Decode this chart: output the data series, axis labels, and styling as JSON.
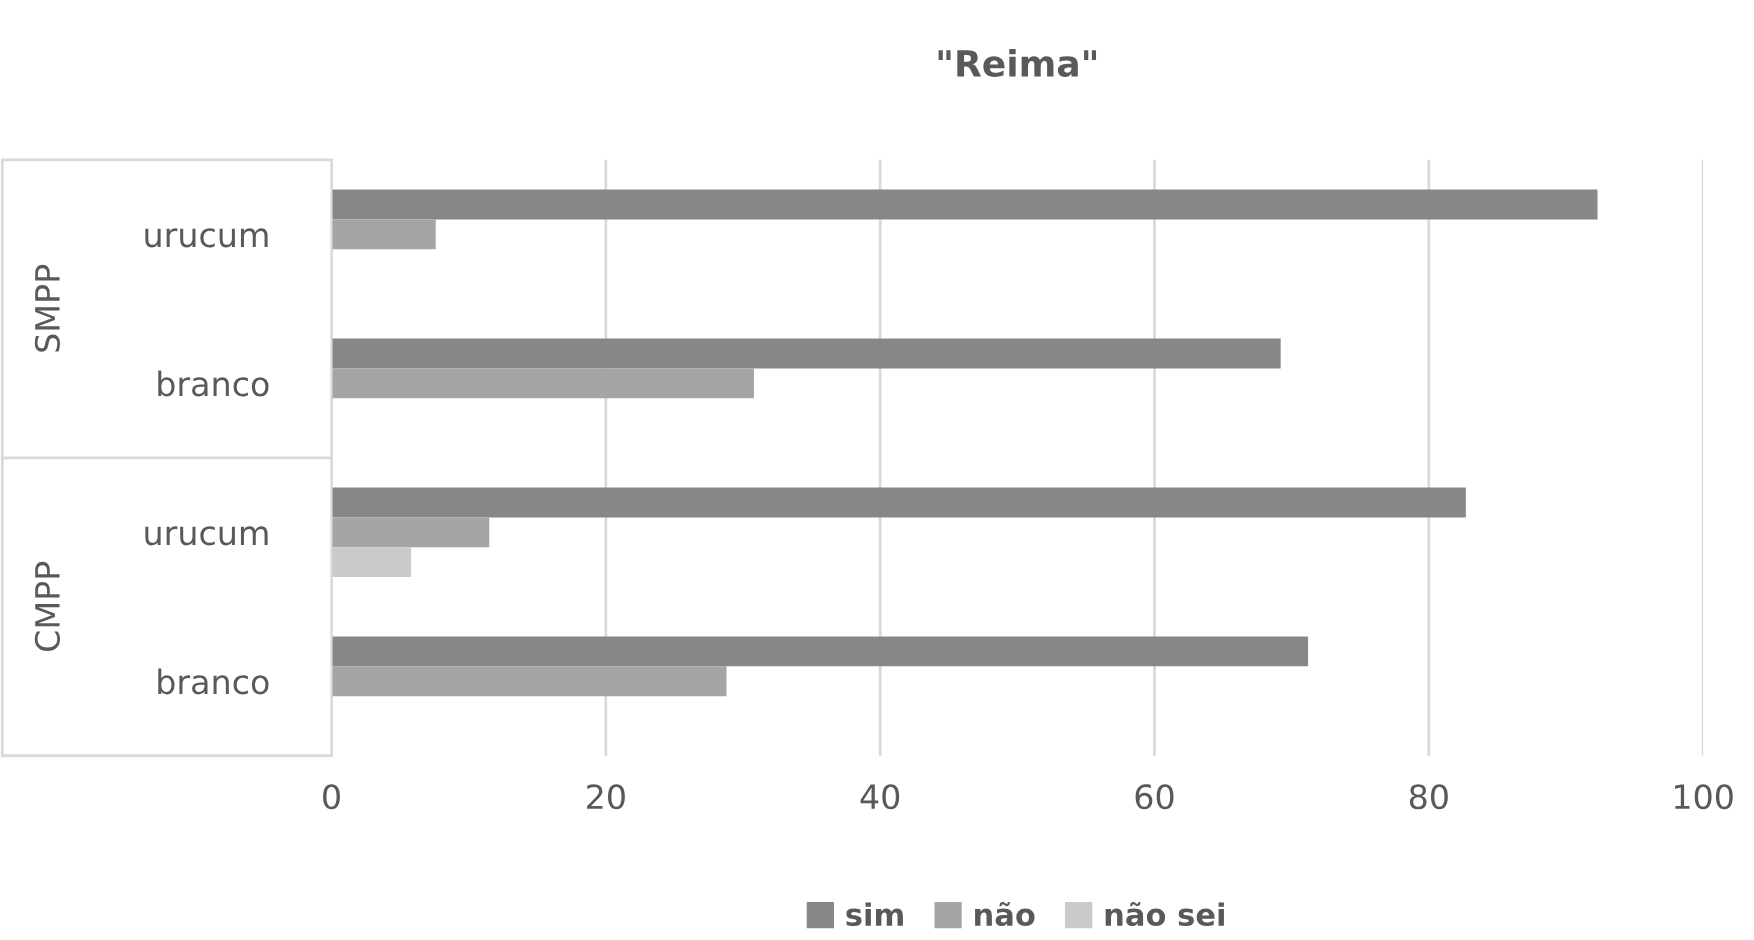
{
  "chart_data": {
    "type": "bar",
    "orientation": "horizontal",
    "title": "\"Reima\"",
    "categories": [
      "urucum",
      "branco",
      "urucum",
      "branco"
    ],
    "series": [
      {
        "name": "sim",
        "color": "#878787",
        "values": [
          92.3,
          69.2,
          82.7,
          71.2
        ]
      },
      {
        "name": "não",
        "color": "#a5a5a5",
        "values": [
          7.6,
          30.8,
          11.5,
          28.8
        ]
      },
      {
        "name": "não sei",
        "color": "#cacaca",
        "values": [
          null,
          null,
          5.8,
          null
        ]
      }
    ],
    "annotations": [
      "SMPP",
      "CMPP"
    ],
    "xlim": [
      0,
      100
    ],
    "xticks": [
      0,
      20,
      40,
      60,
      80,
      100
    ],
    "grid": "x",
    "legend": "bottom"
  }
}
